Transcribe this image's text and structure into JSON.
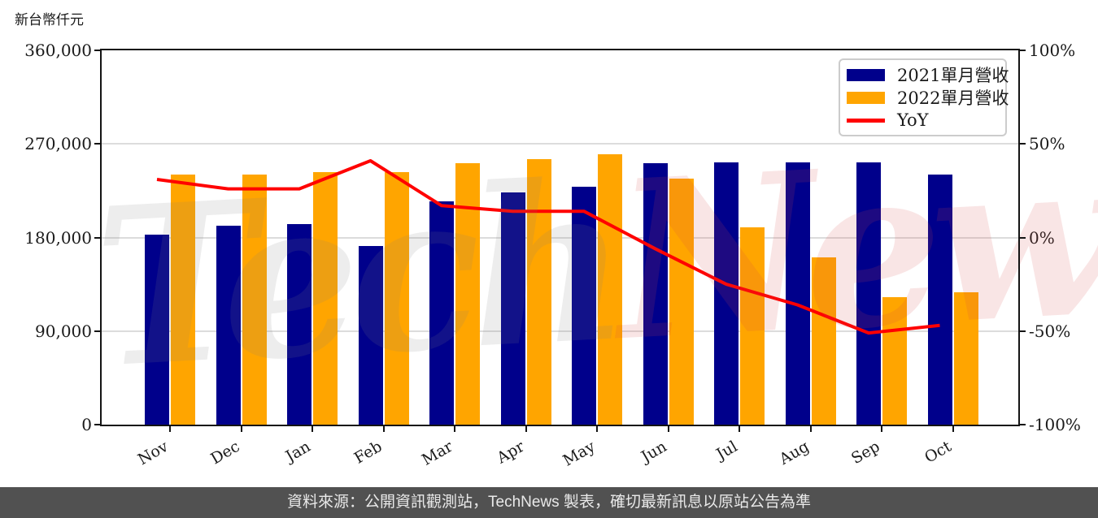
{
  "chart": {
    "unit_label": "新台幣仟元",
    "watermark": {
      "part1": "Tech",
      "part2": "News"
    },
    "colors": {
      "bar_2021": "#00008B",
      "bar_2022": "#FFA500",
      "yoy_line": "#FF0000",
      "gridline": "#DCDCDC",
      "spine": "#141414",
      "footer_bg": "#515151",
      "footer_text": "#E9E9E9"
    }
  },
  "footer": {
    "text": "資料來源：公開資訊觀測站，TechNews 製表，確切最新訊息以原站公告為準"
  },
  "chart_data": {
    "type": "combo-bar-line",
    "categories": [
      "Nov",
      "Dec",
      "Jan",
      "Feb",
      "Mar",
      "Apr",
      "May",
      "Jun",
      "Jul",
      "Aug",
      "Sep",
      "Oct"
    ],
    "series": [
      {
        "name": "2021單月營收",
        "type": "bar",
        "color": "#00008B",
        "values": [
          183000,
          191000,
          193000,
          172000,
          215000,
          223000,
          229000,
          251500,
          252000,
          252500,
          252500,
          240500
        ]
      },
      {
        "name": "2022單月營收",
        "type": "bar",
        "color": "#FFA500",
        "values": [
          240500,
          240500,
          242500,
          242500,
          251500,
          255000,
          260000,
          237000,
          190000,
          160500,
          123000,
          127000
        ]
      },
      {
        "name": "YoY",
        "type": "line",
        "color": "#FF0000",
        "axis": "right",
        "values": [
          31,
          26,
          26,
          41,
          17,
          14,
          14,
          -6,
          -25,
          -36,
          -51,
          -47
        ]
      }
    ],
    "left_axis": {
      "unit": "新台幣仟元",
      "lim": [
        0,
        360000
      ],
      "ticks": [
        360000,
        270000,
        180000,
        90000,
        0
      ],
      "tick_labels": [
        "360,000",
        "270,000",
        "180,000",
        "90,000",
        "0"
      ]
    },
    "right_axis": {
      "unit": "%",
      "lim": [
        -100,
        100
      ],
      "ticks": [
        100,
        50,
        0,
        -50,
        -100
      ],
      "tick_labels": [
        "100%",
        "50%",
        "0%",
        "-50%",
        "-100%"
      ]
    },
    "grid": "horizontal",
    "legend_position": "top-right"
  }
}
